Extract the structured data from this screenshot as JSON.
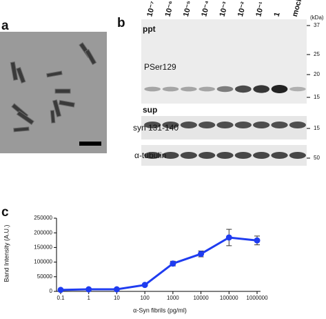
{
  "panels": {
    "a": "a",
    "b": "b",
    "c": "c"
  },
  "blot": {
    "lanes": [
      "10⁻⁷",
      "10⁻⁶",
      "10⁻⁵",
      "10⁻⁴",
      "10⁻³",
      "10⁻²",
      "10⁻¹",
      "1",
      "mock"
    ],
    "unit": "(kDa)",
    "fractions": {
      "ppt": "ppt",
      "sup": "sup"
    },
    "rows": [
      {
        "label": "PSer129",
        "markers": [
          "37",
          "25",
          "20",
          "15"
        ]
      },
      {
        "label": "syn 131-140",
        "markers": [
          "15"
        ]
      },
      {
        "label": "α-tubulin",
        "markers": [
          "50"
        ]
      }
    ]
  },
  "chart_data": {
    "type": "line",
    "x_scale": "log",
    "xlabel": "α-Syn fibrils (pg/ml)",
    "ylabel": "Band Intensity (A.U.)",
    "x": [
      0.1,
      1,
      10,
      100,
      1000,
      10000,
      100000,
      1000000
    ],
    "xticks": [
      {
        "value": 0.1,
        "label": "0.1"
      },
      1,
      10,
      100,
      1000,
      10000,
      100000,
      1000000
    ],
    "xlim": [
      0.1,
      1000000
    ],
    "ylim": [
      0,
      250000
    ],
    "yticks": [
      0,
      50000,
      100000,
      150000,
      200000,
      250000
    ],
    "series": [
      {
        "color": "#1f3cf0",
        "values": [
          5000,
          7000,
          7000,
          22000,
          95000,
          128000,
          184000,
          174000
        ],
        "errors": [
          1000,
          1500,
          1500,
          3000,
          8000,
          10000,
          28000,
          15000
        ]
      }
    ]
  }
}
